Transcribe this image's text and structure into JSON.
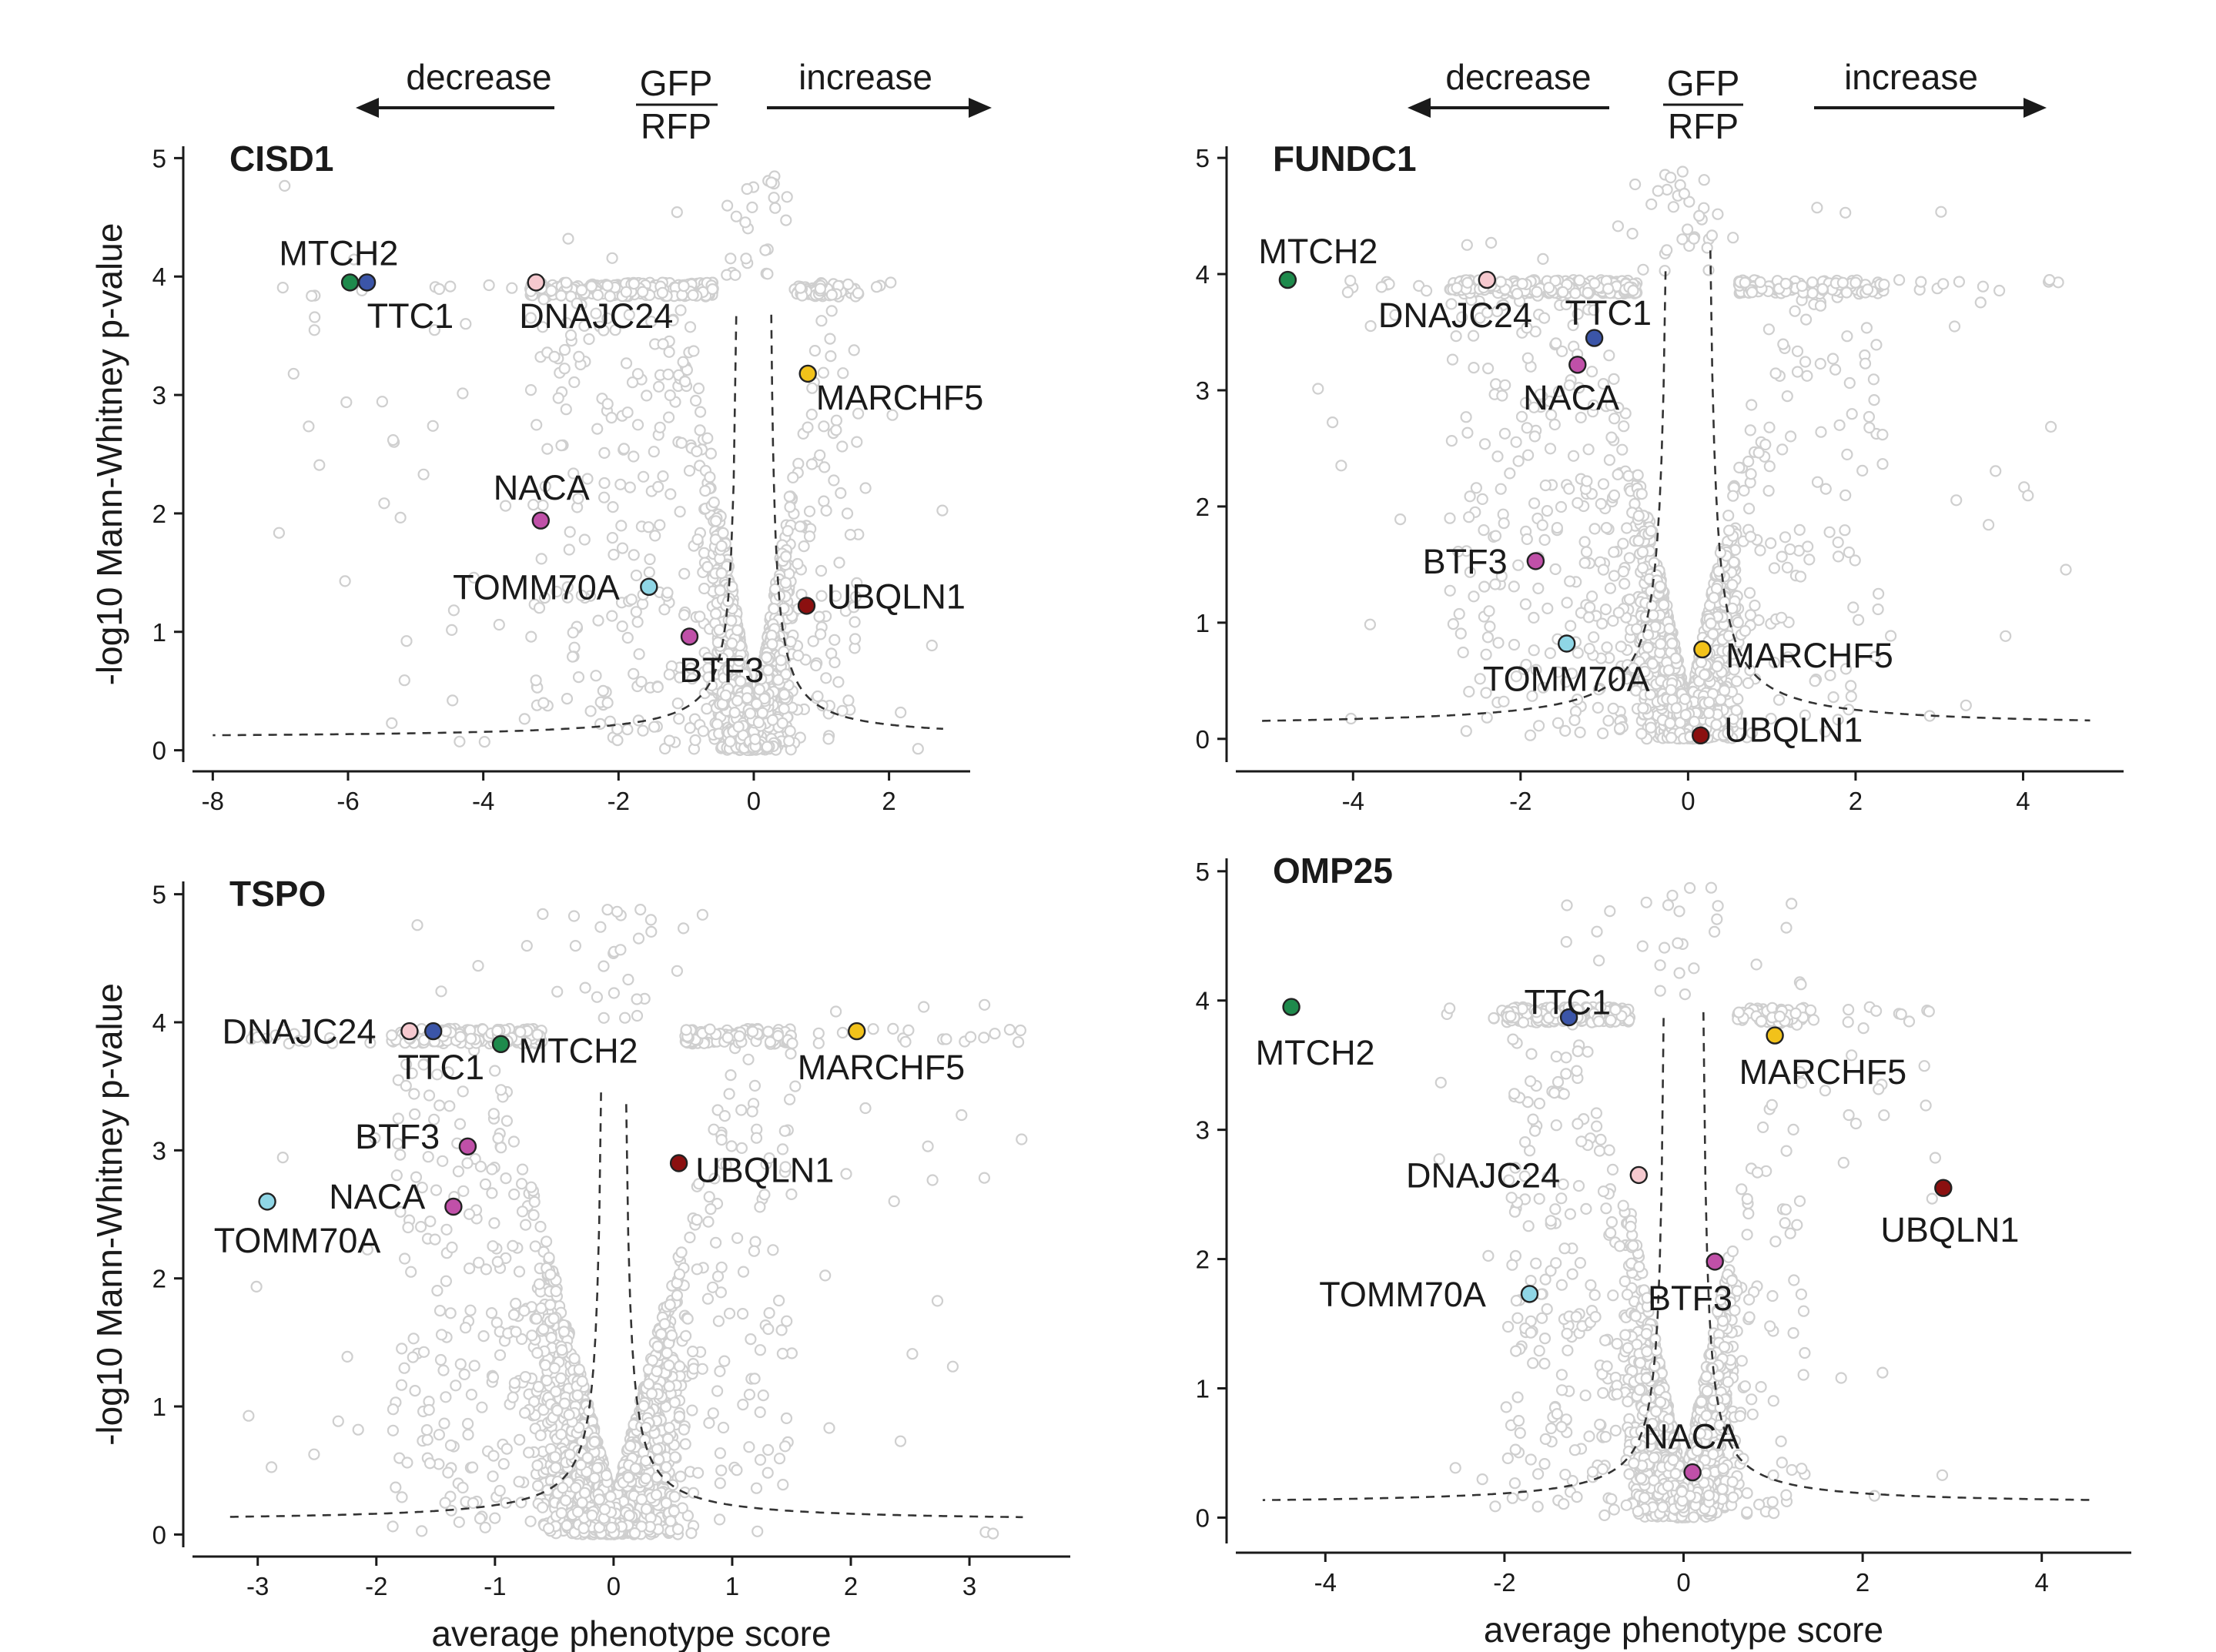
{
  "header": {
    "decrease_label": "decrease",
    "increase_label": "increase",
    "ratio_numerator": "GFP",
    "ratio_denominator": "RFP"
  },
  "colors": {
    "MTCH2": "#1e8a4c",
    "TTC1": "#3b55a8",
    "DNAJC24": "#f6c9cf",
    "MARCHF5": "#f2c21a",
    "NACA": "#c050a8",
    "BTF3": "#c050a8",
    "TOMM70A": "#8fd6e6",
    "UBQLN1": "#8b1010",
    "background_point": "#cfcfcf"
  },
  "chart_data": [
    {
      "type": "scatter",
      "title": "CISD1",
      "xlabel": "",
      "ylabel": "-log10 Mann-Whitney p-value",
      "xlim": [
        -8.3,
        3.2
      ],
      "ylim": [
        -0.1,
        5.1
      ],
      "xticks": [
        -8,
        -6,
        -4,
        -2,
        0,
        2
      ],
      "yticks": [
        0,
        1,
        2,
        3,
        4,
        5
      ],
      "threshold": {
        "c": 0.21,
        "offset": 0.2
      },
      "background": {
        "count": 2300,
        "spread_neg": 1.5,
        "spread_pos": 0.6,
        "xmin": -7.2,
        "xmax": 2.8
      },
      "highlights": [
        {
          "gene": "MTCH2",
          "x": -5.97,
          "y": 3.95,
          "label_dx": -1.05,
          "label_dy": 0.25
        },
        {
          "gene": "TTC1",
          "x": -5.72,
          "y": 3.95,
          "label_dx": 0.0,
          "label_dy": -0.28
        },
        {
          "gene": "DNAJC24",
          "x": -3.22,
          "y": 3.95,
          "label_dx": -0.25,
          "label_dy": -0.28
        },
        {
          "gene": "MARCHF5",
          "x": 0.8,
          "y": 3.18,
          "label_dx": 0.12,
          "label_dy": -0.2
        },
        {
          "gene": "NACA",
          "x": -3.15,
          "y": 1.94,
          "label_dx": -0.7,
          "label_dy": 0.28
        },
        {
          "gene": "TOMM70A",
          "x": -1.55,
          "y": 1.38,
          "label_dx": -2.9,
          "label_dy": 0.0
        },
        {
          "gene": "UBQLN1",
          "x": 0.78,
          "y": 1.22,
          "label_dx": 0.3,
          "label_dy": 0.08
        },
        {
          "gene": "BTF3",
          "x": -0.95,
          "y": 0.96,
          "label_dx": -0.15,
          "label_dy": -0.28
        }
      ]
    },
    {
      "type": "scatter",
      "title": "FUNDC1",
      "xlabel": "",
      "ylabel": "",
      "xlim": [
        -5.4,
        5.2
      ],
      "ylim": [
        -0.2,
        5.1
      ],
      "xticks": [
        -4,
        -2,
        0,
        2,
        4
      ],
      "yticks": [
        0,
        1,
        2,
        3,
        4,
        5
      ],
      "threshold": {
        "c": 0.27,
        "offset": 0.2
      },
      "background": {
        "count": 2600,
        "spread_neg": 1.3,
        "spread_pos": 0.9,
        "xmin": -4.6,
        "xmax": 4.6
      },
      "highlights": [
        {
          "gene": "MTCH2",
          "x": -4.78,
          "y": 3.95,
          "label_dx": -0.35,
          "label_dy": 0.25
        },
        {
          "gene": "DNAJC24",
          "x": -2.4,
          "y": 3.95,
          "label_dx": -1.3,
          "label_dy": -0.3
        },
        {
          "gene": "TTC1",
          "x": -1.12,
          "y": 3.45,
          "label_dx": -0.35,
          "label_dy": 0.22
        },
        {
          "gene": "NACA",
          "x": -1.32,
          "y": 3.22,
          "label_dx": -0.65,
          "label_dy": -0.28
        },
        {
          "gene": "BTF3",
          "x": -1.82,
          "y": 1.53,
          "label_dx": -1.35,
          "label_dy": 0.0
        },
        {
          "gene": "TOMM70A",
          "x": -1.45,
          "y": 0.82,
          "label_dx": -1.0,
          "label_dy": -0.3
        },
        {
          "gene": "MARCHF5",
          "x": 0.17,
          "y": 0.77,
          "label_dx": 0.28,
          "label_dy": -0.05
        },
        {
          "gene": "UBQLN1",
          "x": 0.15,
          "y": 0.03,
          "label_dx": 0.28,
          "label_dy": 0.05
        }
      ]
    },
    {
      "type": "scatter",
      "title": "TSPO",
      "xlabel": "average phenotype score",
      "ylabel": "-log10 Mann-Whitney p-value",
      "xlim": [
        -3.55,
        3.85
      ],
      "ylim": [
        -0.1,
        5.1
      ],
      "xticks": [
        -3,
        -2,
        -1,
        0,
        1,
        2,
        3
      ],
      "yticks": [
        0,
        1,
        2,
        3,
        4,
        5
      ],
      "threshold": {
        "c": 0.12,
        "offset": 0.07
      },
      "background": {
        "count": 2700,
        "spread_neg": 0.85,
        "spread_pos": 0.6,
        "xmin": -3.1,
        "xmax": 3.5
      },
      "highlights": [
        {
          "gene": "DNAJC24",
          "x": -1.72,
          "y": 3.93,
          "label_dx": -1.58,
          "label_dy": 0.0
        },
        {
          "gene": "TTC1",
          "x": -1.52,
          "y": 3.93,
          "label_dx": -0.3,
          "label_dy": -0.28
        },
        {
          "gene": "MTCH2",
          "x": -0.95,
          "y": 3.83,
          "label_dx": 0.15,
          "label_dy": -0.05
        },
        {
          "gene": "MARCHF5",
          "x": 2.05,
          "y": 3.93,
          "label_dx": -0.5,
          "label_dy": -0.28
        },
        {
          "gene": "BTF3",
          "x": -1.23,
          "y": 3.03,
          "label_dx": -0.95,
          "label_dy": 0.08
        },
        {
          "gene": "UBQLN1",
          "x": 0.55,
          "y": 2.9,
          "label_dx": 0.14,
          "label_dy": -0.05
        },
        {
          "gene": "NACA",
          "x": -1.35,
          "y": 2.56,
          "label_dx": -1.05,
          "label_dy": 0.08
        },
        {
          "gene": "TOMM70A",
          "x": -2.92,
          "y": 2.6,
          "label_dx": -0.45,
          "label_dy": -0.3
        }
      ]
    },
    {
      "type": "scatter",
      "title": "OMP25",
      "xlabel": "average phenotype score",
      "ylabel": "",
      "xlim": [
        -5.0,
        5.0
      ],
      "ylim": [
        -0.2,
        5.1
      ],
      "xticks": [
        -4,
        -2,
        0,
        2,
        4
      ],
      "yticks": [
        0,
        1,
        2,
        3,
        4,
        5
      ],
      "threshold": {
        "c": 0.16,
        "offset": 0.18
      },
      "background": {
        "count": 2100,
        "spread_neg": 0.9,
        "spread_pos": 0.55,
        "xmin": -3.0,
        "xmax": 3.0
      },
      "highlights": [
        {
          "gene": "MTCH2",
          "x": -4.38,
          "y": 3.95,
          "label_dx": -0.4,
          "label_dy": -0.35
        },
        {
          "gene": "TTC1",
          "x": -1.28,
          "y": 3.87,
          "label_dx": -0.5,
          "label_dy": 0.12
        },
        {
          "gene": "MARCHF5",
          "x": 1.02,
          "y": 3.73,
          "label_dx": -0.4,
          "label_dy": -0.28
        },
        {
          "gene": "UBQLN1",
          "x": 2.9,
          "y": 2.55,
          "label_dx": -0.7,
          "label_dy": -0.32
        },
        {
          "gene": "DNAJC24",
          "x": -0.5,
          "y": 2.65,
          "label_dx": -2.6,
          "label_dy": 0.0
        },
        {
          "gene": "BTF3",
          "x": 0.35,
          "y": 1.98,
          "label_dx": -0.75,
          "label_dy": -0.28
        },
        {
          "gene": "TOMM70A",
          "x": -1.72,
          "y": 1.73,
          "label_dx": -2.35,
          "label_dy": 0.0
        },
        {
          "gene": "NACA",
          "x": 0.1,
          "y": 0.35,
          "label_dx": -0.55,
          "label_dy": 0.28
        }
      ]
    }
  ]
}
